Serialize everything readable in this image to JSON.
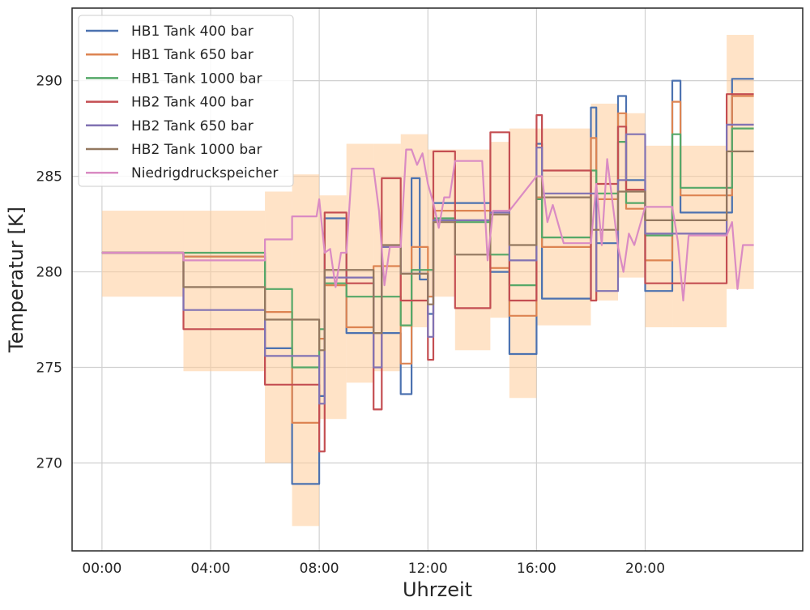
{
  "chart_data": {
    "type": "line",
    "xlabel": "Uhrzeit",
    "ylabel": "Temperatur [K]",
    "x_unit": "hours",
    "xlim": [
      -1.1,
      25.8
    ],
    "ylim": [
      265.4,
      293.8
    ],
    "xticks": [
      0,
      4,
      8,
      12,
      16,
      20
    ],
    "xtick_labels": [
      "00:00",
      "04:00",
      "08:00",
      "12:00",
      "16:00",
      "20:00"
    ],
    "yticks": [
      270,
      275,
      280,
      285,
      290
    ],
    "grid": true,
    "legend_position": "upper-left",
    "band_color": "#ffcc99",
    "bands": [
      {
        "x0": 0,
        "x1": 3,
        "lo": 278.7,
        "hi": 283.2
      },
      {
        "x0": 3,
        "x1": 6,
        "lo": 274.8,
        "hi": 283.2
      },
      {
        "x0": 6,
        "x1": 7,
        "lo": 270,
        "hi": 284.2
      },
      {
        "x0": 7,
        "x1": 8,
        "lo": 266.7,
        "hi": 285.1
      },
      {
        "x0": 8,
        "x1": 9,
        "lo": 272.3,
        "hi": 284
      },
      {
        "x0": 9,
        "x1": 10,
        "lo": 274.2,
        "hi": 286.7
      },
      {
        "x0": 10,
        "x1": 11,
        "lo": 274.8,
        "hi": 286.7
      },
      {
        "x0": 11,
        "x1": 12,
        "lo": 277.1,
        "hi": 287.2
      },
      {
        "x0": 12,
        "x1": 13,
        "lo": 278.7,
        "hi": 286.4
      },
      {
        "x0": 13,
        "x1": 14.3,
        "lo": 275.9,
        "hi": 286.4
      },
      {
        "x0": 14.3,
        "x1": 15,
        "lo": 277.6,
        "hi": 286.8
      },
      {
        "x0": 15,
        "x1": 16,
        "lo": 273.4,
        "hi": 287.5
      },
      {
        "x0": 16,
        "x1": 18,
        "lo": 277.2,
        "hi": 287.5
      },
      {
        "x0": 18,
        "x1": 19,
        "lo": 278.5,
        "hi": 288.8
      },
      {
        "x0": 19,
        "x1": 20,
        "lo": 279.7,
        "hi": 288.3
      },
      {
        "x0": 20,
        "x1": 21,
        "lo": 277.1,
        "hi": 286.6
      },
      {
        "x0": 21,
        "x1": 23,
        "lo": 277.1,
        "hi": 286.6
      },
      {
        "x0": 23,
        "x1": 24,
        "lo": 279.1,
        "hi": 292.4
      }
    ],
    "series": [
      {
        "name": "HB1 Tank 400 bar",
        "color": "#4c72b0",
        "x": [
          0,
          3,
          3,
          6,
          6,
          7,
          7,
          8,
          8,
          8.2,
          8.2,
          9,
          9,
          10,
          10,
          11,
          11,
          11.4,
          11.4,
          11.7,
          11.7,
          12,
          12,
          12.2,
          12.2,
          13,
          13,
          14.3,
          14.3,
          15,
          15,
          16,
          16,
          16.2,
          16.2,
          17,
          17,
          18,
          18,
          18.2,
          18.2,
          19,
          19,
          19.3,
          19.3,
          20,
          20,
          21,
          21,
          21.3,
          21.3,
          23,
          23,
          23.2,
          23.2,
          24
        ],
        "y": [
          281,
          281,
          280.8,
          280.8,
          276,
          276,
          268.9,
          268.9,
          273.5,
          273.5,
          282.8,
          282.8,
          276.8,
          276.8,
          276.8,
          276.8,
          273.6,
          273.6,
          284.9,
          284.9,
          279.6,
          279.6,
          277.8,
          277.8,
          283.6,
          283.6,
          283.6,
          283.6,
          280,
          280,
          275.7,
          275.7,
          286.7,
          286.7,
          278.6,
          278.6,
          278.6,
          278.6,
          288.6,
          288.6,
          281.5,
          281.5,
          289.2,
          289.2,
          284.8,
          284.8,
          279,
          279,
          290,
          290,
          283.1,
          283.1,
          283.1,
          283.1,
          290.1,
          290.1
        ]
      },
      {
        "name": "HB1 Tank 650 bar",
        "color": "#dd8452",
        "x": [
          0,
          3,
          3,
          6,
          6,
          7,
          7,
          8,
          8,
          8.2,
          8.2,
          9,
          9,
          10,
          10,
          11,
          11,
          11.4,
          11.4,
          12,
          12,
          12.2,
          12.2,
          13,
          13,
          14.3,
          14.3,
          15,
          15,
          16,
          16,
          16.2,
          16.2,
          17,
          17,
          18,
          18,
          18.2,
          18.2,
          19,
          19,
          19.3,
          19.3,
          20,
          20,
          21,
          21,
          21.3,
          21.3,
          23,
          23,
          23.2,
          23.2,
          24
        ],
        "y": [
          281,
          281,
          280.8,
          280.8,
          277.9,
          277.9,
          272.1,
          272.1,
          276.5,
          276.5,
          279.3,
          279.3,
          277.1,
          277.1,
          280.3,
          280.3,
          275.2,
          275.2,
          281.3,
          281.3,
          278.7,
          278.7,
          283.2,
          283.2,
          283.2,
          283.2,
          280.2,
          280.2,
          277.7,
          277.7,
          283.9,
          283.9,
          281.3,
          281.3,
          281.3,
          281.3,
          287,
          287,
          283.8,
          283.8,
          288.3,
          288.3,
          283.3,
          283.3,
          280.6,
          280.6,
          288.9,
          288.9,
          284,
          284,
          284,
          284,
          289.2,
          289.2
        ]
      },
      {
        "name": "HB1 Tank 1000 bar",
        "color": "#55a868",
        "x": [
          0,
          3,
          3,
          6,
          6,
          7,
          7,
          8,
          8,
          8.2,
          8.2,
          9,
          9,
          10,
          10,
          11,
          11,
          11.4,
          11.4,
          12,
          12,
          12.2,
          12.2,
          13,
          13,
          14.3,
          14.3,
          15,
          15,
          16,
          16,
          16.2,
          16.2,
          17,
          17,
          18,
          18,
          18.2,
          18.2,
          19,
          19,
          19.3,
          19.3,
          20,
          20,
          21,
          21,
          21.3,
          21.3,
          23,
          23,
          23.2,
          23.2,
          24
        ],
        "y": [
          281,
          281,
          281,
          281,
          279.1,
          279.1,
          275,
          275,
          277,
          277,
          279.4,
          279.4,
          278.7,
          278.7,
          278.7,
          278.7,
          277.2,
          277.2,
          280.1,
          280.1,
          280.1,
          280.1,
          282.8,
          282.8,
          282.6,
          282.6,
          280.9,
          280.9,
          279.3,
          279.3,
          283.8,
          283.8,
          281.8,
          281.8,
          281.8,
          281.8,
          285.3,
          285.3,
          284.1,
          284.1,
          286.8,
          286.8,
          283.6,
          283.6,
          281.9,
          281.9,
          287.2,
          287.2,
          284.4,
          284.4,
          284.4,
          284.4,
          287.5,
          287.5
        ]
      },
      {
        "name": "HB2 Tank 400 bar",
        "color": "#c44e52",
        "x": [
          0,
          3,
          3,
          6,
          6,
          7,
          7,
          8,
          8,
          8.2,
          8.2,
          9,
          9,
          10,
          10,
          10.3,
          10.3,
          11,
          11,
          11.4,
          11.4,
          12,
          12,
          12.2,
          12.2,
          13,
          13,
          13.2,
          13.2,
          14.3,
          14.3,
          15,
          15,
          16,
          16,
          16.2,
          16.2,
          17,
          17,
          18,
          18,
          18.2,
          18.2,
          19,
          19,
          19.3,
          19.3,
          20,
          20,
          21,
          21,
          21.3,
          21.3,
          23,
          23,
          23.2,
          23.2,
          24
        ],
        "y": [
          281,
          281,
          277,
          277,
          274.1,
          274.1,
          274.1,
          274.1,
          270.6,
          270.6,
          283.1,
          283.1,
          279.4,
          279.4,
          272.8,
          272.8,
          284.9,
          284.9,
          278.5,
          278.5,
          278.5,
          278.5,
          275.4,
          275.4,
          286.3,
          286.3,
          278.1,
          278.1,
          278.1,
          278.1,
          287.3,
          287.3,
          278.5,
          278.5,
          288.2,
          288.2,
          285.3,
          285.3,
          285.3,
          285.3,
          278.5,
          278.5,
          284.6,
          284.6,
          287.6,
          287.6,
          284.3,
          284.3,
          279.4,
          279.4,
          279.4,
          279.4,
          279.4,
          279.4,
          289.3,
          289.3,
          289.3,
          289.3
        ]
      },
      {
        "name": "HB2 Tank 650 bar",
        "color": "#8172b3",
        "x": [
          0,
          3,
          3,
          6,
          6,
          7,
          7,
          8,
          8,
          8.2,
          8.2,
          9,
          9,
          10,
          10,
          10.3,
          10.3,
          11,
          11,
          11.4,
          11.4,
          12,
          12,
          12.2,
          12.2,
          13,
          13,
          14.3,
          14.3,
          15,
          15,
          16,
          16,
          16.2,
          16.2,
          17,
          17,
          18,
          18,
          18.2,
          18.2,
          19,
          19,
          19.3,
          19.3,
          20,
          20,
          21,
          21,
          21.3,
          21.3,
          23,
          23,
          23.2,
          23.2,
          24
        ],
        "y": [
          281,
          281,
          278,
          278,
          275.6,
          275.6,
          275.6,
          275.6,
          273.1,
          273.1,
          279.7,
          279.7,
          279.7,
          279.7,
          275,
          275,
          281.3,
          281.3,
          279.9,
          279.9,
          279.9,
          279.9,
          276.6,
          276.6,
          282.7,
          282.7,
          282.7,
          282.7,
          283.1,
          283.1,
          280.6,
          280.6,
          286.5,
          286.5,
          284.1,
          284.1,
          284.1,
          284.1,
          284.1,
          284.1,
          279,
          279,
          284.8,
          284.8,
          287.2,
          287.2,
          282,
          282,
          282,
          282,
          282,
          282,
          287.7,
          287.7,
          287.7,
          287.7
        ]
      },
      {
        "name": "HB2 Tank 1000 bar",
        "color": "#937860",
        "x": [
          0,
          3,
          3,
          6,
          6,
          7,
          7,
          8,
          8,
          8.2,
          8.2,
          9,
          9,
          10,
          10,
          10.3,
          10.3,
          11,
          11,
          11.4,
          11.4,
          12,
          12,
          12.2,
          12.2,
          13,
          13,
          14.3,
          14.3,
          15,
          15,
          16,
          16,
          16.2,
          16.2,
          17,
          17,
          18,
          18,
          18.2,
          18.2,
          19,
          19,
          19.3,
          19.3,
          20,
          20,
          21,
          21,
          21.3,
          21.3,
          23,
          23,
          23.2,
          23.2,
          24
        ],
        "y": [
          281,
          281,
          279.2,
          279.2,
          277.5,
          277.5,
          277.5,
          277.5,
          275.9,
          275.9,
          280.1,
          280.1,
          280.1,
          280.1,
          276.8,
          276.8,
          281.4,
          281.4,
          279.9,
          279.9,
          279.9,
          279.9,
          278.3,
          278.3,
          282.6,
          282.6,
          280.9,
          280.9,
          283,
          283,
          281.4,
          281.4,
          285,
          285,
          283.9,
          283.9,
          283.9,
          283.9,
          282.2,
          282.2,
          282.2,
          282.2,
          284.2,
          284.2,
          284.2,
          284.2,
          282.7,
          282.7,
          282.7,
          282.7,
          282.7,
          282.7,
          286.3,
          286.3,
          286.3,
          286.3
        ]
      },
      {
        "name": "Niedrigdruckspeicher",
        "color": "#da8bc3",
        "x": [
          0,
          3,
          3,
          6,
          6,
          7,
          7,
          7.9,
          8,
          8.2,
          8.4,
          8.6,
          8.8,
          9,
          9.2,
          9.4,
          9.6,
          10,
          10.2,
          10.4,
          10.6,
          11,
          11.2,
          11.4,
          11.6,
          11.8,
          12,
          12.2,
          12.4,
          12.6,
          12.8,
          13,
          13.2,
          14,
          14.2,
          14.4,
          15,
          16,
          16.2,
          16.4,
          16.6,
          17,
          18,
          18.2,
          18.4,
          18.6,
          19,
          19.2,
          19.4,
          19.6,
          20,
          21,
          21.2,
          21.4,
          21.6,
          23,
          23.2,
          23.4,
          23.6,
          24
        ],
        "y": [
          281,
          281,
          280.6,
          280.6,
          281.7,
          281.7,
          282.9,
          282.9,
          283.8,
          281,
          281.2,
          279.2,
          281,
          281,
          285.4,
          285.4,
          285.4,
          285.4,
          283.2,
          279.3,
          281.3,
          281.3,
          286.4,
          286.4,
          285.6,
          286.2,
          284.6,
          283.6,
          282.3,
          283.9,
          283.9,
          285.8,
          285.8,
          285.8,
          280.6,
          283.2,
          283.2,
          285,
          285,
          282.6,
          283.5,
          281.5,
          281.5,
          284.6,
          281.4,
          285.9,
          281.3,
          280,
          282,
          281.4,
          283.4,
          283.4,
          281.6,
          278.5,
          281.9,
          281.9,
          282.6,
          279.1,
          281.4,
          281.4
        ]
      }
    ]
  }
}
